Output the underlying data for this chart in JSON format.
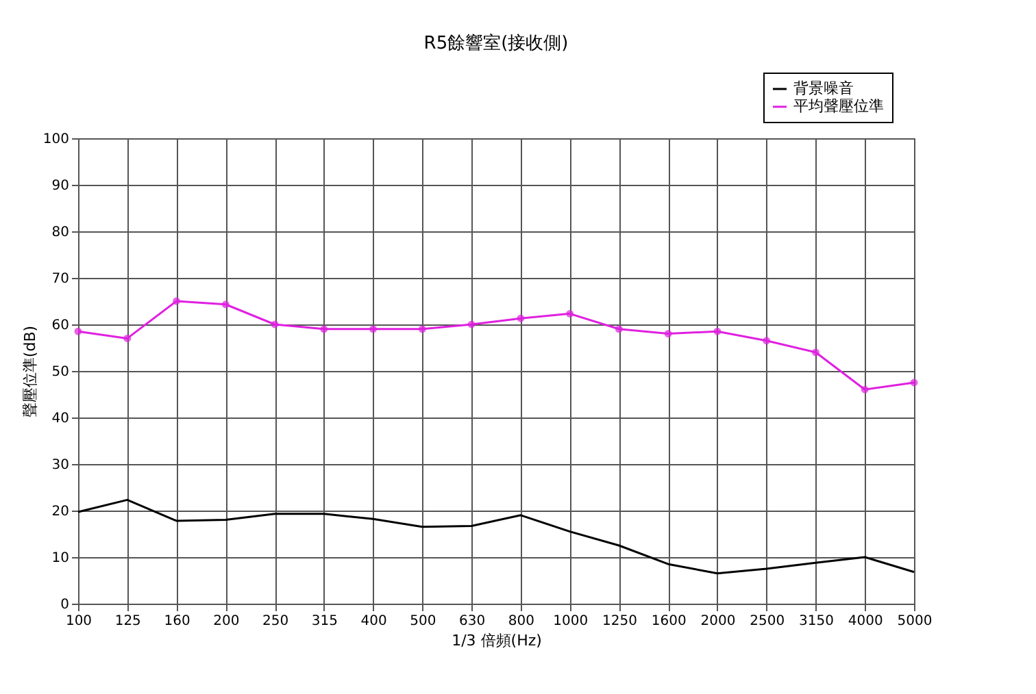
{
  "chart_data": {
    "type": "line",
    "title": "R5餘響室(接收側)",
    "xlabel": "1/3 倍頻(Hz)",
    "ylabel": "聲壓位準(dB)",
    "categories": [
      "100",
      "125",
      "160",
      "200",
      "250",
      "315",
      "400",
      "500",
      "630",
      "800",
      "1000",
      "1250",
      "1600",
      "2000",
      "2500",
      "3150",
      "4000",
      "5000"
    ],
    "series": [
      {
        "name": "背景噪音",
        "color": "#000000",
        "marker": "none",
        "values": [
          19.7,
          22.3,
          17.8,
          18,
          19.3,
          19.3,
          18.2,
          16.5,
          16.7,
          19,
          15.5,
          12.5,
          8.5,
          6.5,
          7.5,
          8.8,
          10,
          6.8
        ]
      },
      {
        "name": "平均聲壓位準",
        "color": "#e020e0",
        "marker": "circle",
        "values": [
          58.5,
          57,
          65,
          64.3,
          60,
          59,
          59,
          59,
          60,
          61.3,
          62.3,
          59,
          58,
          58.5,
          56.5,
          54,
          46,
          47.5
        ]
      }
    ],
    "ylim": [
      0,
      100
    ],
    "yticks": [
      0,
      10,
      20,
      30,
      40,
      50,
      60,
      70,
      80,
      90,
      100
    ],
    "grid": true,
    "legend": "top right",
    "line_style": "solid"
  }
}
